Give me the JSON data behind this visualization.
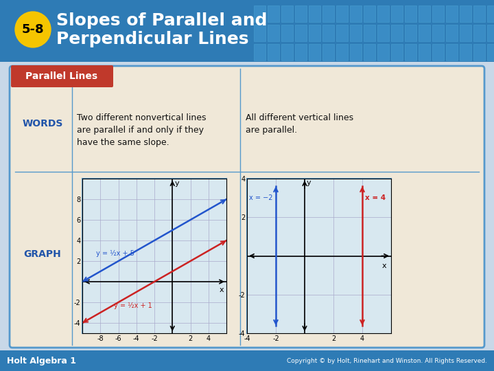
{
  "title_badge": "5-8",
  "title_text": "Slopes of Parallel and\nPerpendicular Lines",
  "header_bg": "#2E7BB5",
  "header_text_color": "#FFFFFF",
  "badge_bg": "#F5C500",
  "badge_text_color": "#000000",
  "slide_bg": "#C8D8E8",
  "card_bg": "#F0E8D8",
  "card_border": "#5599CC",
  "parallel_label_bg": "#C0392B",
  "parallel_label_text": "Parallel Lines",
  "parallel_label_text_color": "#FFFFFF",
  "words_label": "WORDS",
  "words_label_color": "#2255AA",
  "graph_label": "GRAPH",
  "graph_label_color": "#2255AA",
  "words_text1": "Two different nonvertical lines\nare parallel if and only if they\nhave the same slope.",
  "words_text2": "All different vertical lines\nare parallel.",
  "footer_bg": "#2E7BB5",
  "footer_text": "Holt Algebra 1",
  "footer_text_color": "#FFFFFF",
  "copyright_text": "Copyright © by Holt, Rinehart and Winston. All Rights Reserved.",
  "copyright_color": "#FFFFFF",
  "graph1_bg": "#D8E8F0",
  "graph1_border": "#5599CC",
  "graph2_bg": "#D8E8F0",
  "graph2_border": "#5599CC",
  "line1_color": "#2255CC",
  "line2_color": "#CC2222",
  "vline1_color": "#2255CC",
  "vline2_color": "#CC2222",
  "line1_label": "y = ½x + 5",
  "line2_label": "y = ½x + 1",
  "vline1_label": "x = −2",
  "vline2_label": "x = 4",
  "axis_color": "#000000",
  "grid_color": "#AAAACC"
}
